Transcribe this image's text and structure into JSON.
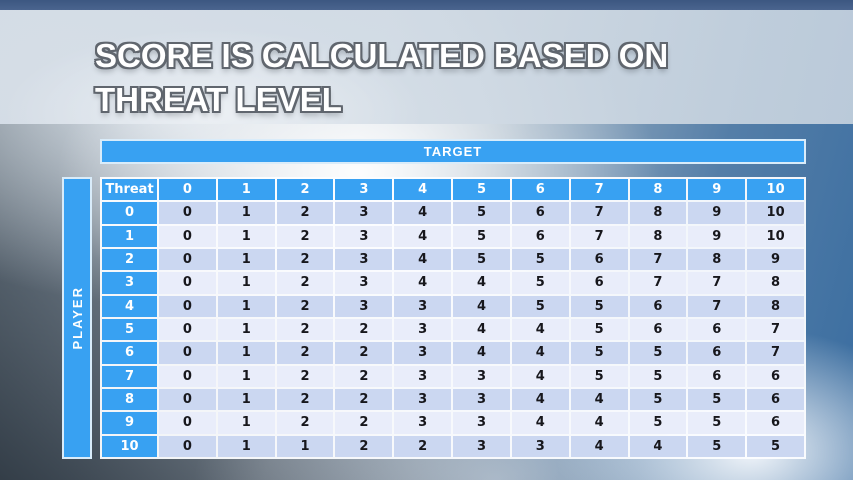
{
  "slide": {
    "title_line1": "SCORE IS CALCULATED BASED ON",
    "title_line2": "THREAT LEVEL"
  },
  "matrix": {
    "target_label": "TARGET",
    "player_label": "PLAYER",
    "corner_label": "Threat",
    "col_headers": [
      "0",
      "1",
      "2",
      "3",
      "4",
      "5",
      "6",
      "7",
      "8",
      "9",
      "10"
    ],
    "rows": [
      {
        "threat": "0",
        "values": [
          "0",
          "1",
          "2",
          "3",
          "4",
          "5",
          "6",
          "7",
          "8",
          "9",
          "10"
        ]
      },
      {
        "threat": "1",
        "values": [
          "0",
          "1",
          "2",
          "3",
          "4",
          "5",
          "6",
          "7",
          "8",
          "9",
          "10"
        ]
      },
      {
        "threat": "2",
        "values": [
          "0",
          "1",
          "2",
          "3",
          "4",
          "5",
          "5",
          "6",
          "7",
          "8",
          "9"
        ]
      },
      {
        "threat": "3",
        "values": [
          "0",
          "1",
          "2",
          "3",
          "4",
          "4",
          "5",
          "6",
          "7",
          "7",
          "8"
        ]
      },
      {
        "threat": "4",
        "values": [
          "0",
          "1",
          "2",
          "3",
          "3",
          "4",
          "5",
          "5",
          "6",
          "7",
          "8"
        ]
      },
      {
        "threat": "5",
        "values": [
          "0",
          "1",
          "2",
          "2",
          "3",
          "4",
          "4",
          "5",
          "6",
          "6",
          "7"
        ]
      },
      {
        "threat": "6",
        "values": [
          "0",
          "1",
          "2",
          "2",
          "3",
          "4",
          "4",
          "5",
          "5",
          "6",
          "7"
        ]
      },
      {
        "threat": "7",
        "values": [
          "0",
          "1",
          "2",
          "2",
          "3",
          "3",
          "4",
          "5",
          "5",
          "6",
          "6"
        ]
      },
      {
        "threat": "8",
        "values": [
          "0",
          "1",
          "2",
          "2",
          "3",
          "3",
          "4",
          "4",
          "5",
          "5",
          "6"
        ]
      },
      {
        "threat": "9",
        "values": [
          "0",
          "1",
          "2",
          "2",
          "3",
          "3",
          "4",
          "4",
          "5",
          "5",
          "6"
        ]
      },
      {
        "threat": "10",
        "values": [
          "0",
          "1",
          "1",
          "2",
          "2",
          "3",
          "3",
          "4",
          "4",
          "5",
          "5"
        ]
      }
    ]
  },
  "colors": {
    "accent_blue": "#38a1f2",
    "row_dark": "#cbd7f1",
    "row_light": "#e9edfa",
    "cell_text": "#17171c",
    "top_strip_blue": "#44608a",
    "banner": "#d3dde8",
    "grid_line": "#fcfdff"
  }
}
